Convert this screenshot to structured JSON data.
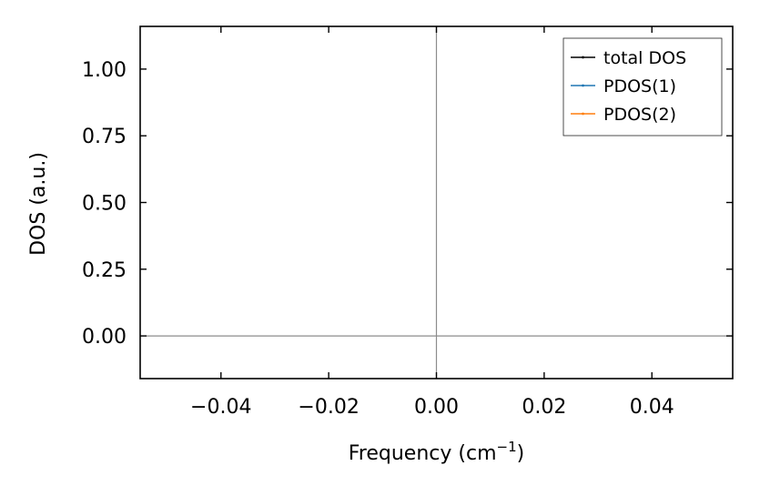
{
  "chart_data": {
    "type": "line",
    "xlabel": "Frequency (cm",
    "xlabel_superscript": "−1",
    "xlabel_suffix": ")",
    "ylabel": "DOS (a.u.)",
    "xlim": [
      -0.055,
      0.055
    ],
    "ylim": [
      -0.16,
      1.16
    ],
    "x_ticks": [
      -0.04,
      -0.02,
      0.0,
      0.02,
      0.04
    ],
    "x_tick_labels": [
      "−0.04",
      "−0.02",
      "0.00",
      "0.02",
      "0.04"
    ],
    "y_ticks": [
      0.0,
      0.25,
      0.5,
      0.75,
      1.0
    ],
    "y_tick_labels": [
      "0.00",
      "0.25",
      "0.50",
      "0.75",
      "1.00"
    ],
    "reference_lines": {
      "x": 0,
      "y": 0,
      "color": "#8c8c8c"
    },
    "grid": false,
    "legend": {
      "placement": "top-right"
    },
    "series": [
      {
        "name": "total DOS",
        "color": "#000000",
        "x": [],
        "y": []
      },
      {
        "name": "PDOS(1)",
        "color": "#1f77b4",
        "x": [],
        "y": []
      },
      {
        "name": "PDOS(2)",
        "color": "#ff7f0e",
        "x": [],
        "y": []
      }
    ]
  }
}
